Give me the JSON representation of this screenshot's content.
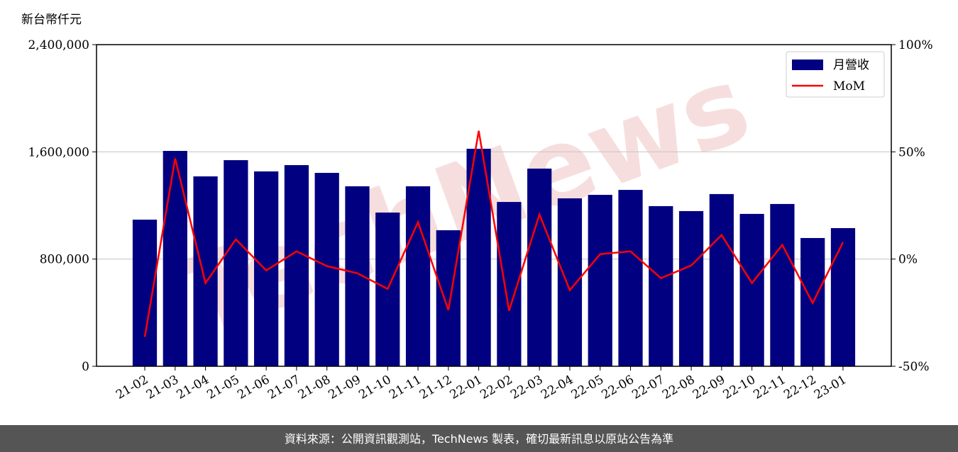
{
  "chart_data": {
    "type": "bar",
    "y_label": "新台幣仟元",
    "categories": [
      "21-02",
      "21-03",
      "21-04",
      "21-05",
      "21-06",
      "21-07",
      "21-08",
      "21-09",
      "21-10",
      "21-11",
      "21-12",
      "22-01",
      "22-02",
      "22-03",
      "22-04",
      "22-05",
      "22-06",
      "22-07",
      "22-08",
      "22-09",
      "22-10",
      "22-11",
      "22-12",
      "23-01"
    ],
    "series": [
      {
        "name": "月營收",
        "type": "bar",
        "color": "#000080",
        "values": [
          1094000,
          1607000,
          1417000,
          1538000,
          1454000,
          1501000,
          1443000,
          1343000,
          1147000,
          1343000,
          1015000,
          1623000,
          1226000,
          1475000,
          1253000,
          1279000,
          1316000,
          1195000,
          1158000,
          1285000,
          1137000,
          1211000,
          957000,
          1031000
        ]
      },
      {
        "name": "MoM",
        "type": "line",
        "color": "#ff0000",
        "axis": "y2",
        "values": [
          -36.3,
          46.9,
          -11.2,
          9.2,
          -5.3,
          3.6,
          -3.3,
          -6.6,
          -13.9,
          17.2,
          -23.8,
          59.8,
          -24.1,
          20.8,
          -14.5,
          2.3,
          3.6,
          -8.9,
          -3.0,
          11.2,
          -11.2,
          6.6,
          -20.5,
          7.9
        ]
      }
    ],
    "ylim": [
      0,
      2400000
    ],
    "yticks": [
      0,
      {
        "value": 800000,
        "label": "800,000"
      },
      {
        "value": 1600000,
        "label": "1,600,000"
      },
      {
        "value": 2400000,
        "label": "2,400,000"
      }
    ],
    "y2lim": [
      -50,
      100
    ],
    "y2ticks": [
      {
        "value": -50,
        "label": "-50%"
      },
      {
        "value": 0,
        "label": "0%"
      },
      {
        "value": 50,
        "label": "50%"
      },
      {
        "value": 100,
        "label": "100%"
      }
    ],
    "grid": true,
    "legend": "upper right"
  },
  "watermark": "TechNews",
  "footer": "資料來源：公開資訊觀測站，TechNews 製表，確切最新訊息以原站公告為準"
}
